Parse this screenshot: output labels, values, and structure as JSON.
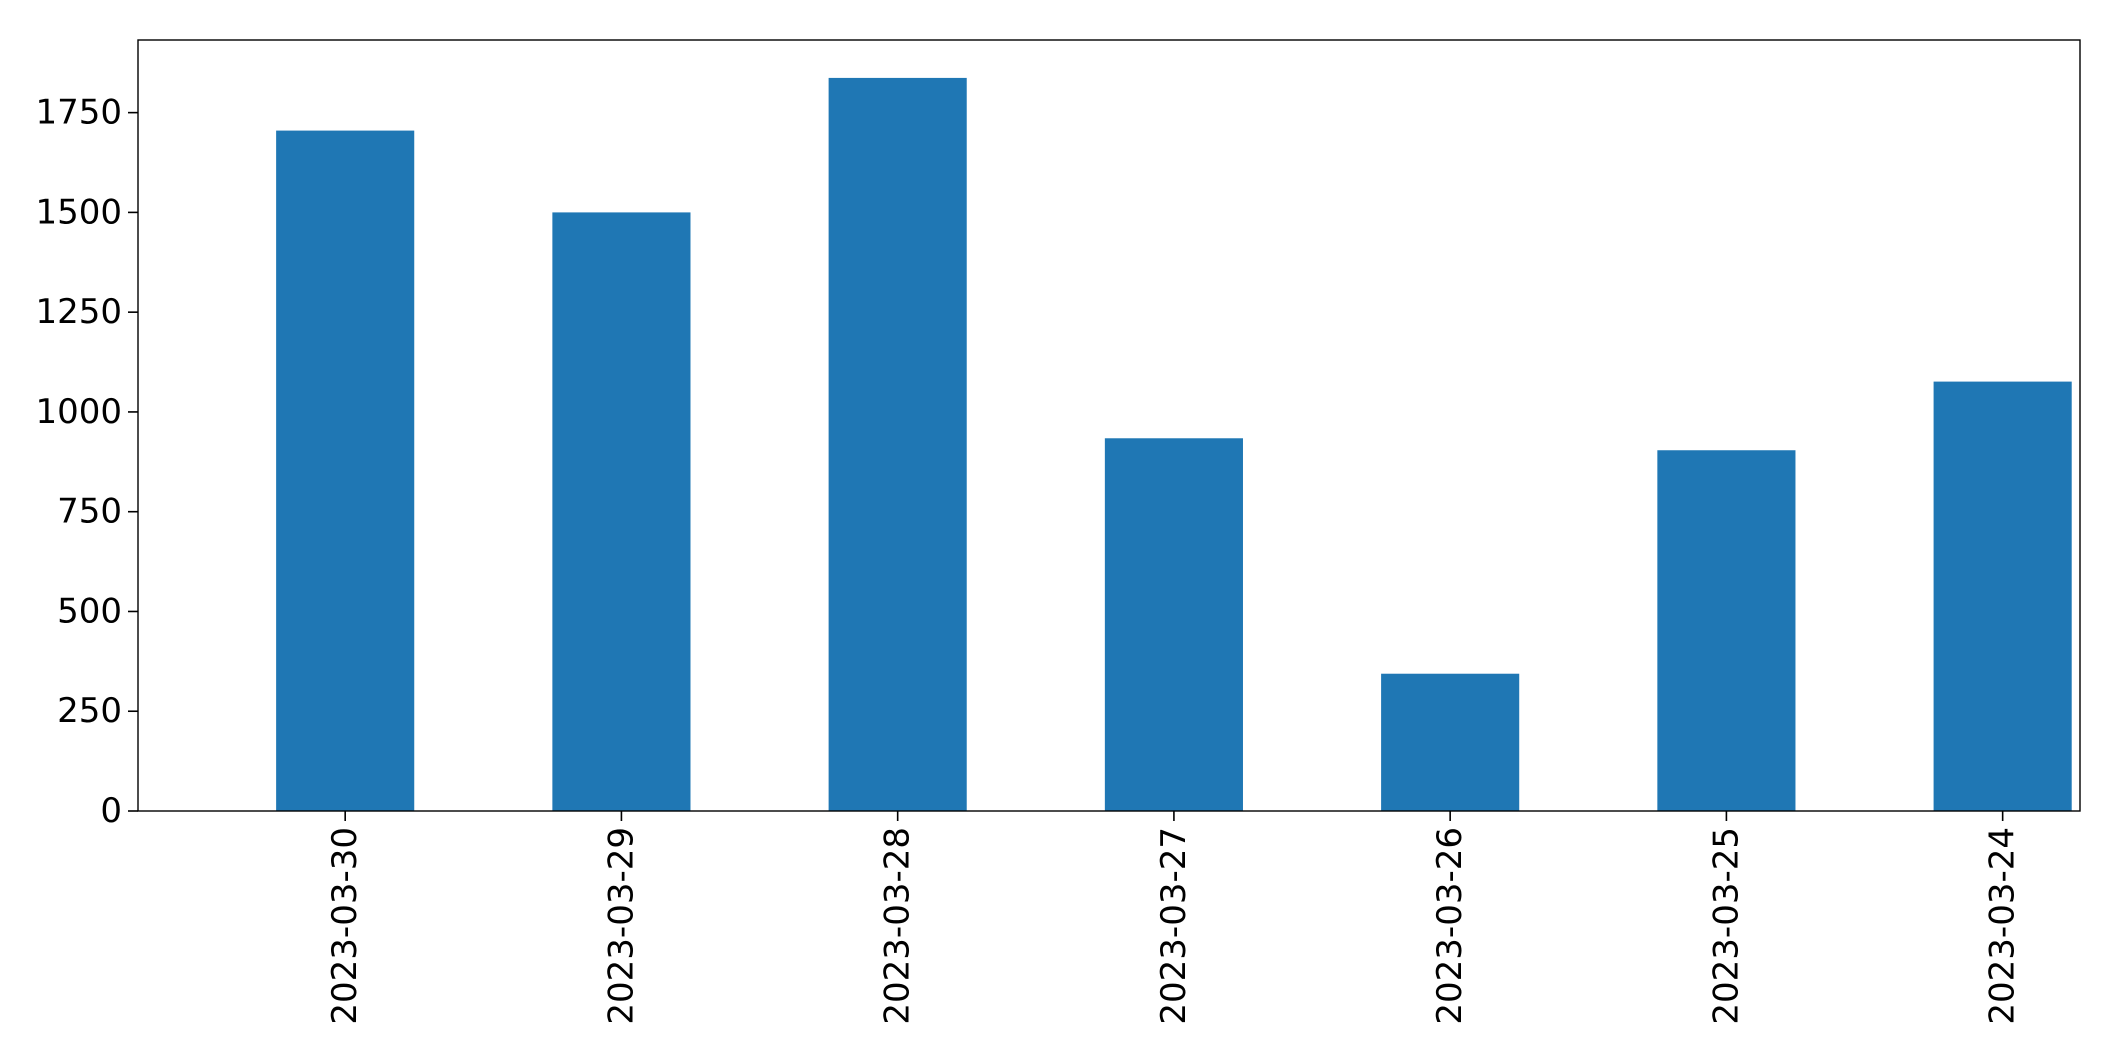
{
  "chart_data": {
    "type": "bar",
    "title": "",
    "xlabel": "",
    "ylabel": "",
    "categories": [
      "2023-03-30",
      "2023-03-29",
      "2023-03-28",
      "2023-03-27",
      "2023-03-26",
      "2023-03-25",
      "2023-03-24"
    ],
    "values": [
      1705,
      1500,
      1837,
      934,
      344,
      904,
      1076
    ],
    "ylim": [
      0,
      1932
    ],
    "yticks": [
      0,
      250,
      500,
      750,
      1000,
      1250,
      1500,
      1750
    ],
    "ytick_labels": [
      "0",
      "250",
      "500",
      "750",
      "1000",
      "1250",
      "1500",
      "1750"
    ],
    "grid": false,
    "legend": "none",
    "bar_color": "#1f77b4",
    "x_tick_rotation": "vertical"
  }
}
